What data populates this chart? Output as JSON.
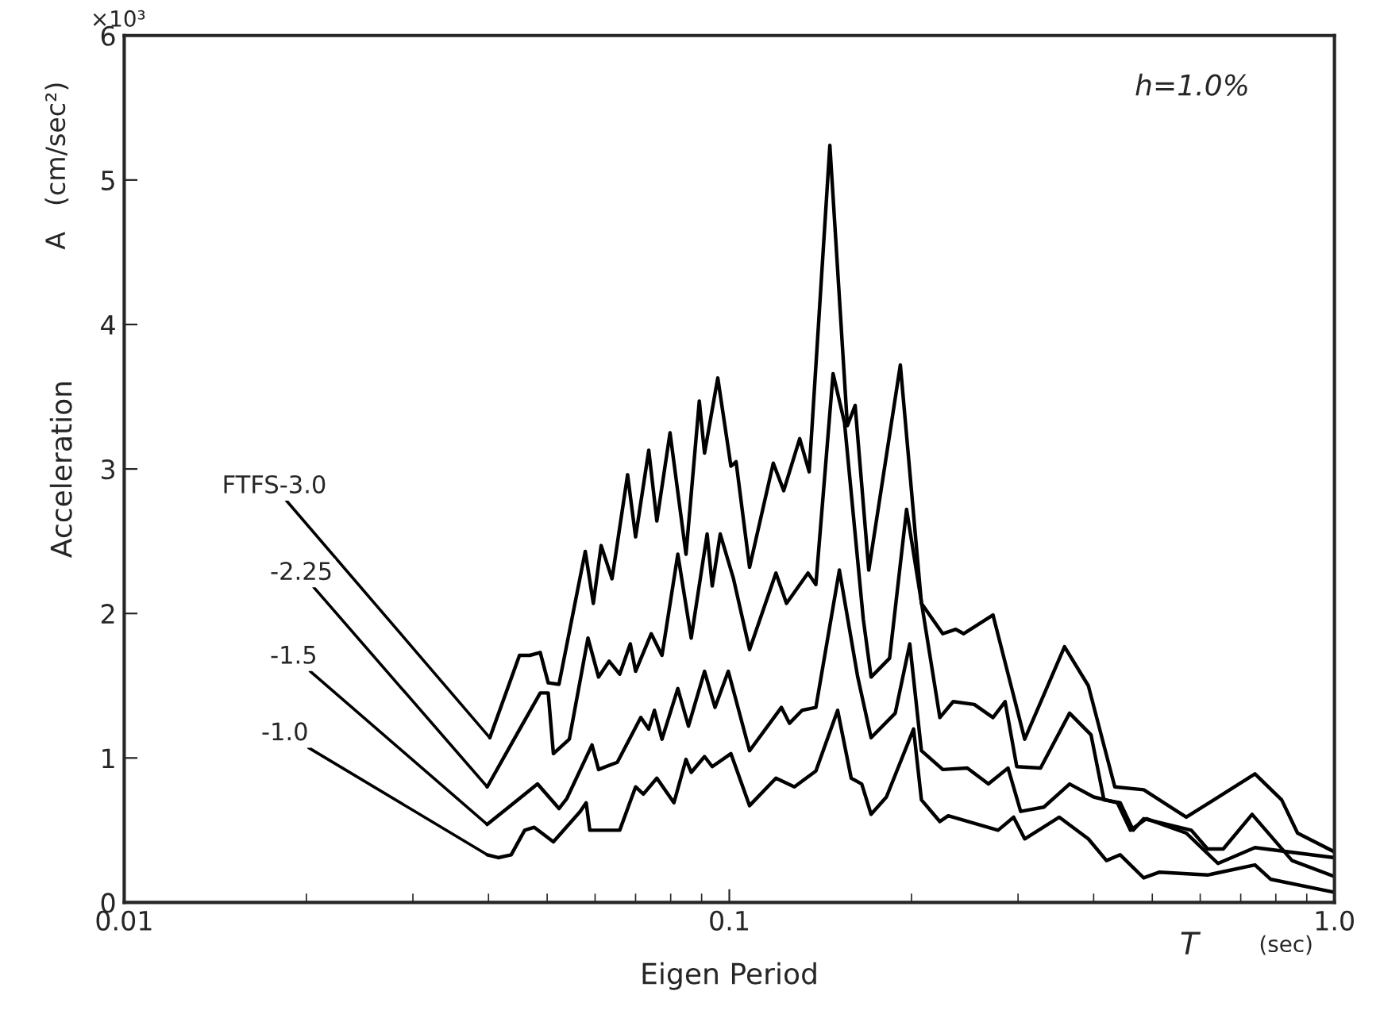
{
  "chart_data": {
    "type": "line",
    "xlabel": "Eigen Period",
    "ylabel": "Acceleration",
    "log": "x",
    "xlim": [
      0.01,
      1.0
    ],
    "xticks": [
      {
        "value": 0.01,
        "label": "0.01"
      },
      {
        "value": 0.1,
        "label": "0.1"
      },
      {
        "value": 1.0,
        "label": "1.0"
      }
    ],
    "ylim": [
      0,
      6
    ],
    "yticks": [
      0,
      1,
      2,
      3,
      4,
      5,
      6
    ],
    "grid": false,
    "legend": false,
    "marker": "none",
    "line_style": "solid",
    "annotations": [
      "h=1.0%",
      "×10³",
      "A   (cm/sec²)",
      "T",
      "(sec)"
    ],
    "series": [
      {
        "name": "FTFS-3.0",
        "color": "#000000",
        "x": [
          0.0402,
          0.045,
          0.0468,
          0.0487,
          0.0502,
          0.0523,
          0.0578,
          0.0596,
          0.0614,
          0.064,
          0.0679,
          0.07,
          0.0736,
          0.0759,
          0.0798,
          0.0848,
          0.0892,
          0.091,
          0.0957,
          0.1006,
          0.1026,
          0.108,
          0.1182,
          0.123,
          0.1307,
          0.1355,
          0.1466,
          0.1567,
          0.1614,
          0.17,
          0.1917,
          0.2077,
          0.2253,
          0.2368,
          0.244,
          0.2727,
          0.3077,
          0.358,
          0.392,
          0.4335,
          0.484,
          0.569,
          0.739,
          0.818,
          0.869,
          1.0
        ],
        "values": [
          1.14,
          1.71,
          1.71,
          1.73,
          1.52,
          1.51,
          2.43,
          2.07,
          2.47,
          2.24,
          2.96,
          2.53,
          3.13,
          2.64,
          3.25,
          2.41,
          3.47,
          3.11,
          3.63,
          3.02,
          3.05,
          2.32,
          3.04,
          2.85,
          3.21,
          2.98,
          5.24,
          3.3,
          3.44,
          2.3,
          3.72,
          2.07,
          1.86,
          1.89,
          1.86,
          1.99,
          1.13,
          1.77,
          1.5,
          0.8,
          0.78,
          0.59,
          0.89,
          0.71,
          0.48,
          0.35
        ]
      },
      {
        "name": "-2.25",
        "color": "#000000",
        "x": [
          0.0398,
          0.0445,
          0.0487,
          0.0502,
          0.0512,
          0.0544,
          0.0584,
          0.0608,
          0.0633,
          0.0659,
          0.0686,
          0.07,
          0.0743,
          0.0774,
          0.0822,
          0.0865,
          0.0919,
          0.0937,
          0.0966,
          0.1016,
          0.108,
          0.1194,
          0.1243,
          0.1349,
          0.139,
          0.1484,
          0.155,
          0.1665,
          0.1715,
          0.184,
          0.1963,
          0.2228,
          0.2344,
          0.254,
          0.2727,
          0.2856,
          0.2985,
          0.3268,
          0.365,
          0.396,
          0.416,
          0.4425,
          0.465,
          0.484,
          0.58,
          0.617,
          0.655,
          0.731,
          0.851,
          1.0
        ],
        "values": [
          0.8,
          1.16,
          1.45,
          1.45,
          1.03,
          1.13,
          1.83,
          1.56,
          1.67,
          1.58,
          1.79,
          1.6,
          1.86,
          1.71,
          2.41,
          1.83,
          2.55,
          2.19,
          2.55,
          2.24,
          1.75,
          2.28,
          2.07,
          2.28,
          2.2,
          3.66,
          3.32,
          1.96,
          1.56,
          1.69,
          2.72,
          1.28,
          1.39,
          1.37,
          1.28,
          1.39,
          0.94,
          0.93,
          1.31,
          1.16,
          0.71,
          0.69,
          0.5,
          0.58,
          0.5,
          0.37,
          0.37,
          0.61,
          0.29,
          0.18
        ]
      },
      {
        "name": "-1.5",
        "color": "#000000",
        "x": [
          0.0398,
          0.0482,
          0.0523,
          0.0539,
          0.0593,
          0.0608,
          0.0653,
          0.0714,
          0.0736,
          0.0752,
          0.0774,
          0.0822,
          0.0856,
          0.091,
          0.0947,
          0.0996,
          0.108,
          0.1219,
          0.1257,
          0.1319,
          0.139,
          0.152,
          0.163,
          0.1715,
          0.188,
          0.1987,
          0.2077,
          0.2253,
          0.2473,
          0.268,
          0.2888,
          0.303,
          0.331,
          0.365,
          0.4,
          0.4378,
          0.46,
          0.489,
          0.569,
          0.642,
          0.739,
          1.0
        ],
        "values": [
          0.54,
          0.82,
          0.65,
          0.72,
          1.09,
          0.92,
          0.97,
          1.28,
          1.2,
          1.33,
          1.13,
          1.48,
          1.22,
          1.6,
          1.35,
          1.6,
          1.05,
          1.35,
          1.24,
          1.33,
          1.35,
          2.3,
          1.56,
          1.14,
          1.31,
          1.79,
          1.05,
          0.92,
          0.93,
          0.82,
          0.93,
          0.63,
          0.66,
          0.82,
          0.73,
          0.69,
          0.5,
          0.58,
          0.48,
          0.27,
          0.38,
          0.31
        ]
      },
      {
        "name": "-1.0",
        "color": "#000000",
        "x": [
          0.0398,
          0.0415,
          0.0436,
          0.0459,
          0.0476,
          0.0512,
          0.0567,
          0.058,
          0.0588,
          0.0659,
          0.07,
          0.0721,
          0.0759,
          0.081,
          0.0848,
          0.0865,
          0.091,
          0.0937,
          0.1006,
          0.108,
          0.1194,
          0.1281,
          0.139,
          0.151,
          0.159,
          0.1655,
          0.1715,
          0.1818,
          0.2016,
          0.2077,
          0.2228,
          0.23,
          0.278,
          0.295,
          0.3077,
          0.351,
          0.392,
          0.42,
          0.4425,
          0.484,
          0.514,
          0.617,
          0.739,
          0.785,
          1.0
        ],
        "values": [
          0.33,
          0.31,
          0.33,
          0.5,
          0.52,
          0.42,
          0.63,
          0.69,
          0.5,
          0.5,
          0.8,
          0.75,
          0.86,
          0.69,
          0.99,
          0.9,
          1.01,
          0.94,
          1.03,
          0.67,
          0.86,
          0.8,
          0.91,
          1.33,
          0.86,
          0.82,
          0.61,
          0.73,
          1.2,
          0.71,
          0.56,
          0.6,
          0.5,
          0.59,
          0.44,
          0.59,
          0.44,
          0.29,
          0.33,
          0.17,
          0.21,
          0.19,
          0.26,
          0.16,
          0.07
        ]
      }
    ]
  }
}
